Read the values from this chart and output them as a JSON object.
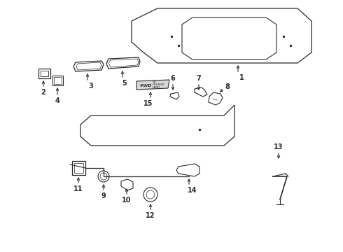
{
  "bg": "#ffffff",
  "lc": "#2a2a2a",
  "figsize": [
    4.9,
    3.6
  ],
  "dpi": 100,
  "xlim": [
    0,
    490
  ],
  "ylim": [
    0,
    360
  ]
}
